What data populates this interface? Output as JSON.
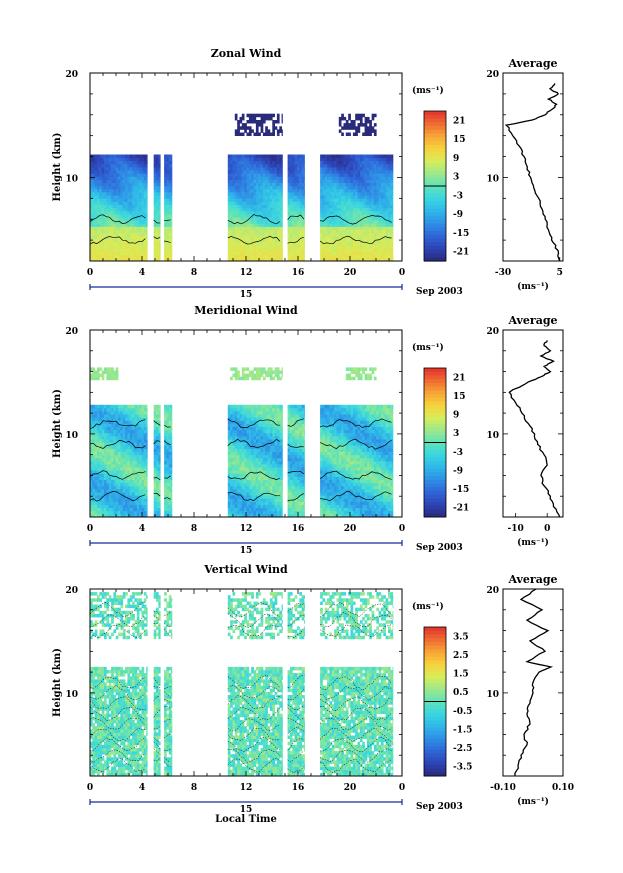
{
  "figure": {
    "xlabel": "Local Time",
    "date_label": "Sep 2003",
    "day_label": "15",
    "cb_unit": "(ms⁻¹)",
    "avg_title": "Average",
    "avg_xlabel": "(ms⁻¹)"
  },
  "chart_data": [
    {
      "type": "heatmap",
      "title": "Zonal Wind",
      "ylabel": "Height (km)",
      "xlim": [
        0,
        24
      ],
      "ylim": [
        2,
        20
      ],
      "x_ticks": [
        "0",
        "4",
        "8",
        "12",
        "16",
        "20",
        "0"
      ],
      "y_ticks": [
        "10",
        "20"
      ],
      "cb_ticks": [
        "21",
        "15",
        "9",
        "3",
        "-3",
        "-9",
        "-15",
        "-21"
      ],
      "cb_range": [
        -24,
        24
      ],
      "data_intervals_hours": [
        [
          0,
          4.4
        ],
        [
          4.9,
          5.4
        ],
        [
          5.7,
          6.3
        ],
        [
          10.6,
          14.8
        ],
        [
          15.2,
          16.5
        ],
        [
          17.7,
          23.3
        ]
      ],
      "avg_xlim": [
        -30,
        7
      ],
      "avg_x_ticks": [
        "-30",
        "5"
      ],
      "avg_profile": [
        [
          5,
          2
        ],
        [
          4,
          3
        ],
        [
          0,
          4
        ],
        [
          -2,
          5
        ],
        [
          -4,
          6
        ],
        [
          -6,
          7
        ],
        [
          -8,
          8
        ],
        [
          -11,
          9
        ],
        [
          -13,
          10
        ],
        [
          -15,
          11
        ],
        [
          -17,
          12
        ],
        [
          -20,
          13
        ],
        [
          -24,
          14
        ],
        [
          -28,
          15
        ],
        [
          -12,
          15.5
        ],
        [
          -4,
          16
        ],
        [
          0,
          16.5
        ],
        [
          3,
          17
        ],
        [
          -2,
          17.5
        ],
        [
          4,
          18
        ],
        [
          -1,
          18.5
        ],
        [
          2,
          19
        ]
      ]
    },
    {
      "type": "heatmap",
      "title": "Meridional Wind",
      "ylabel": "Height (km)",
      "xlim": [
        0,
        24
      ],
      "ylim": [
        2,
        20
      ],
      "x_ticks": [
        "0",
        "4",
        "8",
        "12",
        "16",
        "20",
        "0"
      ],
      "y_ticks": [
        "10",
        "20"
      ],
      "cb_ticks": [
        "21",
        "15",
        "9",
        "3",
        "-3",
        "-9",
        "-15",
        "-21"
      ],
      "cb_range": [
        -24,
        24
      ],
      "data_intervals_hours": [
        [
          0,
          4.4
        ],
        [
          4.9,
          5.4
        ],
        [
          5.7,
          6.3
        ],
        [
          10.6,
          14.8
        ],
        [
          15.2,
          16.5
        ],
        [
          17.7,
          23.3
        ]
      ],
      "avg_xlim": [
        -14,
        5
      ],
      "avg_x_ticks": [
        "-10",
        "0"
      ],
      "avg_profile": [
        [
          4,
          2
        ],
        [
          2,
          3
        ],
        [
          1,
          4
        ],
        [
          -1,
          5
        ],
        [
          -2,
          6
        ],
        [
          0,
          7
        ],
        [
          -1,
          8
        ],
        [
          -3,
          9
        ],
        [
          -4,
          10
        ],
        [
          -6,
          11
        ],
        [
          -8,
          12
        ],
        [
          -10,
          13
        ],
        [
          -12,
          14
        ],
        [
          -6,
          15
        ],
        [
          -2,
          15.5
        ],
        [
          1,
          16
        ],
        [
          -1,
          16.5
        ],
        [
          2,
          17
        ],
        [
          -2,
          17.5
        ],
        [
          1,
          18
        ],
        [
          -1,
          18.5
        ],
        [
          0,
          19
        ]
      ]
    },
    {
      "type": "heatmap",
      "title": "Vertical Wind",
      "ylabel": "Height (km)",
      "xlim": [
        0,
        24
      ],
      "ylim": [
        2,
        20
      ],
      "x_ticks": [
        "0",
        "4",
        "8",
        "12",
        "16",
        "20",
        "0"
      ],
      "y_ticks": [
        "10",
        "20"
      ],
      "cb_ticks": [
        "3.5",
        "2.5",
        "1.5",
        "0.5",
        "-0.5",
        "-1.5",
        "-2.5",
        "-3.5"
      ],
      "cb_range": [
        -4,
        4
      ],
      "data_intervals_hours": [
        [
          0,
          4.4
        ],
        [
          4.9,
          5.4
        ],
        [
          5.7,
          6.3
        ],
        [
          10.6,
          14.8
        ],
        [
          15.2,
          16.5
        ],
        [
          17.7,
          23.3
        ]
      ],
      "avg_xlim": [
        -0.1,
        0.1
      ],
      "avg_x_ticks": [
        "-0.10",
        "0.10"
      ],
      "avg_profile": [
        [
          -0.06,
          2
        ],
        [
          -0.05,
          3
        ],
        [
          -0.04,
          4
        ],
        [
          -0.02,
          5
        ],
        [
          -0.03,
          6
        ],
        [
          -0.01,
          7
        ],
        [
          -0.02,
          8
        ],
        [
          -0.01,
          9
        ],
        [
          0.0,
          10
        ],
        [
          0.0,
          11
        ],
        [
          0.02,
          12
        ],
        [
          0.06,
          12.5
        ],
        [
          -0.02,
          13
        ],
        [
          0.04,
          14
        ],
        [
          -0.01,
          15
        ],
        [
          0.05,
          16
        ],
        [
          -0.02,
          17
        ],
        [
          0.03,
          18
        ],
        [
          -0.04,
          19
        ],
        [
          0.01,
          20
        ]
      ]
    }
  ]
}
